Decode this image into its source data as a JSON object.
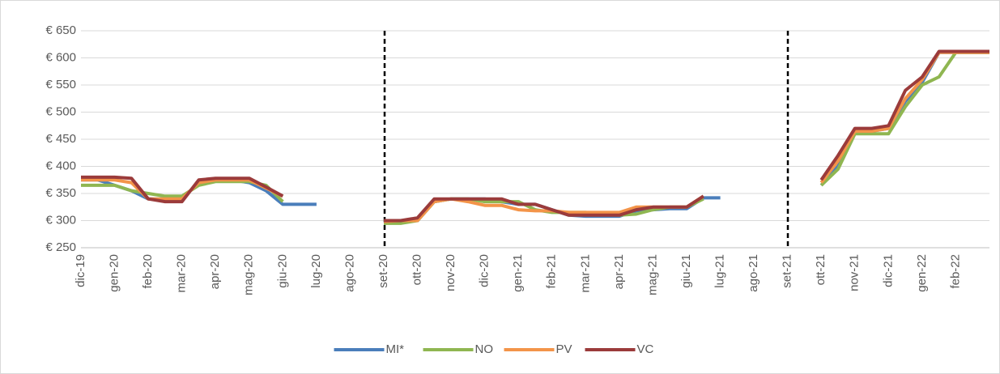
{
  "chart_data": {
    "type": "line",
    "categories": [
      "dic-19",
      null,
      "gen-20",
      null,
      "feb-20",
      null,
      "mar-20",
      null,
      "apr-20",
      null,
      "mag-20",
      null,
      "giu-20",
      null,
      "lug-20",
      null,
      "ago-20",
      null,
      "set-20",
      null,
      "ott-20",
      null,
      "nov-20",
      null,
      "dic-20",
      null,
      "gen-21",
      null,
      "feb-21",
      null,
      "mar-21",
      null,
      "apr-21",
      null,
      "mag-21",
      null,
      "giu-21",
      null,
      "lug-21",
      null,
      "ago-21",
      null,
      "set-21",
      null,
      "ott-21",
      null,
      "nov-21",
      null,
      "dic-21",
      null,
      "gen-22",
      null,
      "feb-22",
      null,
      null
    ],
    "series": [
      {
        "name": "MI*",
        "color": "#4a7ebb",
        "values": [
          375,
          375,
          365,
          355,
          340,
          340,
          340,
          370,
          375,
          375,
          370,
          355,
          330,
          330,
          330,
          null,
          null,
          null,
          295,
          300,
          300,
          335,
          340,
          340,
          340,
          335,
          330,
          330,
          320,
          310,
          308,
          308,
          308,
          318,
          320,
          322,
          322,
          342,
          342,
          null,
          null,
          null,
          null,
          null,
          365,
          400,
          465,
          465,
          470,
          520,
          555,
          610,
          610,
          610,
          610
        ]
      },
      {
        "name": "NO",
        "color": "#8fb651",
        "values": [
          365,
          365,
          365,
          355,
          350,
          345,
          345,
          365,
          372,
          372,
          372,
          365,
          335,
          null,
          null,
          null,
          null,
          null,
          295,
          295,
          300,
          335,
          340,
          340,
          335,
          335,
          335,
          320,
          315,
          315,
          315,
          312,
          310,
          312,
          320,
          325,
          325,
          340,
          null,
          null,
          null,
          null,
          null,
          null,
          365,
          395,
          460,
          460,
          460,
          510,
          550,
          565,
          610,
          610,
          610
        ]
      },
      {
        "name": "PV",
        "color": "#f39449",
        "values": [
          375,
          375,
          375,
          370,
          340,
          340,
          340,
          370,
          375,
          375,
          375,
          360,
          345,
          null,
          null,
          null,
          null,
          null,
          298,
          300,
          300,
          335,
          340,
          335,
          328,
          328,
          320,
          318,
          318,
          315,
          315,
          315,
          315,
          325,
          325,
          325,
          325,
          345,
          null,
          null,
          null,
          null,
          null,
          null,
          370,
          410,
          465,
          465,
          470,
          525,
          560,
          610,
          610,
          610,
          610
        ]
      },
      {
        "name": "VC",
        "color": "#9b3b3b",
        "values": [
          380,
          380,
          380,
          378,
          340,
          335,
          335,
          375,
          378,
          378,
          378,
          362,
          345,
          null,
          null,
          null,
          null,
          null,
          300,
          300,
          305,
          340,
          340,
          340,
          340,
          340,
          330,
          330,
          320,
          310,
          310,
          310,
          310,
          320,
          325,
          325,
          325,
          345,
          null,
          null,
          null,
          null,
          null,
          null,
          375,
          420,
          470,
          470,
          475,
          540,
          565,
          612,
          612,
          612,
          612
        ]
      }
    ],
    "ylim": [
      250,
      650
    ],
    "yticks": [
      {
        "value": 250,
        "label": "€ 250"
      },
      {
        "value": 300,
        "label": "€ 300"
      },
      {
        "value": 350,
        "label": "€ 350"
      },
      {
        "value": 400,
        "label": "€ 400"
      },
      {
        "value": 450,
        "label": "€ 450"
      },
      {
        "value": 500,
        "label": "€ 500"
      },
      {
        "value": 550,
        "label": "€ 550"
      },
      {
        "value": 600,
        "label": "€ 600"
      },
      {
        "value": 650,
        "label": "€ 650"
      }
    ],
    "grid": true
  }
}
